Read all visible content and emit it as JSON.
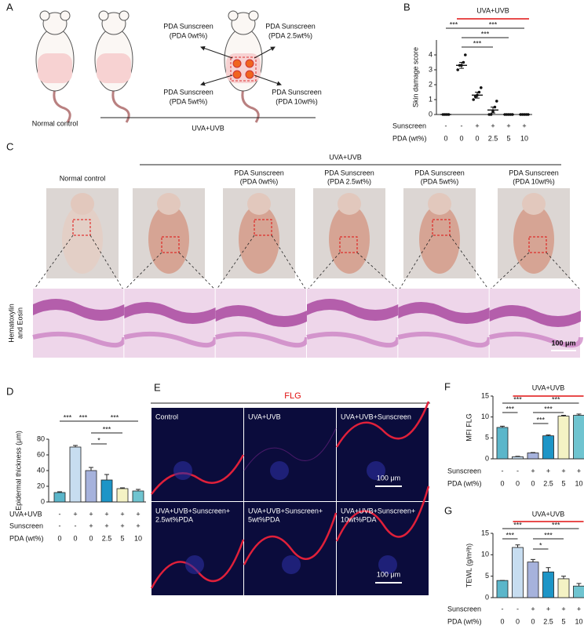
{
  "figure": {
    "a": {
      "label": "A",
      "normal": "Normal control",
      "group": "UVA+UVB",
      "sites": [
        [
          "PDA Sunscreen",
          "(PDA 0wt%)"
        ],
        [
          "PDA Sunscreen",
          "(PDA 2.5wt%)"
        ],
        [
          "PDA Sunscreen",
          "(PDA 5wt%)"
        ],
        [
          "PDA Sunscreen",
          "(PDA 10wt%)"
        ]
      ]
    },
    "c": {
      "label": "C",
      "group": "UVA+UVB",
      "normal": "Normal control",
      "treated": [
        [
          "PDA Sunscreen",
          "(PDA 0wt%)"
        ],
        [
          "PDA Sunscreen",
          "(PDA 2.5wt%)"
        ],
        [
          "PDA Sunscreen",
          "(PDA 5wt%)"
        ],
        [
          "PDA Sunscreen",
          "(PDA 10wt%)"
        ]
      ],
      "stain": [
        "Hematoxylin",
        "and Eosin"
      ],
      "scale_bar": "100 μm"
    },
    "e": {
      "label": "E",
      "title": "FLG",
      "cells": [
        [
          "Control"
        ],
        [
          "UVA+UVB"
        ],
        [
          "UVA+UVB+Sunscreen"
        ],
        [
          "UVA+UVB+Sunscreen+",
          "2.5wt%PDA"
        ],
        [
          "UVA+UVB+Sunscreen+",
          "5wt%PDA"
        ],
        [
          "UVA+UVB+Sunscreen+",
          "10wt%PDA"
        ]
      ],
      "scale_bar": "100 μm"
    }
  },
  "chart_data": [
    {
      "type": "dot",
      "panel": "B",
      "ylabel": "Skin damage score",
      "ylim": [
        0,
        5
      ],
      "yticks": [
        0,
        1,
        2,
        3,
        4
      ],
      "header": "UVA+UVB",
      "header_span": [
        1,
        5
      ],
      "color": "#111111",
      "points": [
        [
          0,
          0,
          0,
          0
        ],
        [
          3.0,
          3.3,
          3.3,
          3.5,
          4.0
        ],
        [
          1.0,
          1.2,
          1.3,
          1.5,
          1.8
        ],
        [
          0,
          0,
          0.2,
          0.5,
          0.9
        ],
        [
          0,
          0,
          0,
          0,
          0
        ],
        [
          0,
          0,
          0,
          0,
          0
        ]
      ],
      "values": [
        0,
        3.3,
        1.3,
        0.3,
        0,
        0
      ],
      "errors": [
        0,
        0.2,
        0.2,
        0.2,
        0,
        0
      ],
      "rows": [
        {
          "name": "Sunscreen",
          "cells": [
            "-",
            "-",
            "+",
            "+",
            "+",
            "+"
          ]
        },
        {
          "name": "PDA (wt%)",
          "cells": [
            "0",
            "0",
            "0",
            "2.5",
            "5",
            "10"
          ]
        }
      ],
      "brackets": [
        {
          "between": [
            0,
            1
          ],
          "label": "***"
        },
        {
          "between": [
            1,
            5
          ],
          "label": "***"
        },
        {
          "between": [
            1,
            4
          ],
          "label": "***"
        },
        {
          "between": [
            1,
            3
          ],
          "label": "***"
        }
      ]
    },
    {
      "type": "bar",
      "panel": "D",
      "ylabel": "Epidermal thickness (μm)",
      "ylim": [
        0,
        80
      ],
      "yticks": [
        0,
        20,
        40,
        60,
        80
      ],
      "values": [
        12,
        70,
        40,
        28,
        17,
        14
      ],
      "errors": [
        1,
        2,
        4,
        7,
        1,
        2
      ],
      "colors": [
        "#5bb6ca",
        "#c7ddf0",
        "#a6b2dc",
        "#1d95c7",
        "#f4f2c4",
        "#6fc4d0"
      ],
      "rows": [
        {
          "name": "UVA+UVB",
          "cells": [
            "-",
            "+",
            "+",
            "+",
            "+",
            "+"
          ]
        },
        {
          "name": "Sunscreen",
          "cells": [
            "-",
            "-",
            "+",
            "+",
            "+",
            "+"
          ]
        },
        {
          "name": "PDA (wt%)",
          "cells": [
            "0",
            "0",
            "0",
            "2.5",
            "5",
            "10"
          ]
        }
      ],
      "brackets": [
        {
          "between": [
            0,
            1
          ],
          "label": "***"
        },
        {
          "between": [
            1,
            2
          ],
          "label": "***"
        },
        {
          "between": [
            2,
            5
          ],
          "label": "***"
        },
        {
          "between": [
            2,
            4
          ],
          "label": "***"
        },
        {
          "between": [
            2,
            3
          ],
          "label": "*"
        }
      ]
    },
    {
      "type": "bar",
      "panel": "F",
      "ylabel": "MFI  FLG",
      "ylim": [
        0,
        15
      ],
      "yticks": [
        0,
        5,
        10,
        15
      ],
      "header": "UVA+UVB",
      "header_span": [
        1,
        5
      ],
      "values": [
        7.5,
        0.5,
        1.4,
        5.5,
        10.2,
        10.4
      ],
      "errors": [
        0.3,
        0.1,
        0.1,
        0.2,
        0.2,
        0.3
      ],
      "colors": [
        "#5bb6ca",
        "#c7ddf0",
        "#a6b2dc",
        "#1d95c7",
        "#f4f2c4",
        "#6fc4d0"
      ],
      "rows": [
        {
          "name": "Sunscreen",
          "cells": [
            "-",
            "-",
            "+",
            "+",
            "+",
            "+"
          ]
        },
        {
          "name": "PDA (wt%)",
          "cells": [
            "0",
            "0",
            "0",
            "2.5",
            "5",
            "10"
          ]
        }
      ],
      "brackets": [
        {
          "between": [
            0,
            2
          ],
          "label": "***"
        },
        {
          "between": [
            2,
            5
          ],
          "label": "***"
        },
        {
          "between": [
            0,
            1
          ],
          "label": "***"
        },
        {
          "between": [
            2,
            4
          ],
          "label": "***"
        },
        {
          "between": [
            2,
            3
          ],
          "label": "***"
        }
      ]
    },
    {
      "type": "bar",
      "panel": "G",
      "ylabel": "TEWL (g/m²h)",
      "ylim": [
        0,
        15
      ],
      "yticks": [
        0,
        5,
        10,
        15
      ],
      "header": "UVA+UVB",
      "header_span": [
        1,
        5
      ],
      "values": [
        4.0,
        11.7,
        8.3,
        6.0,
        4.4,
        2.7
      ],
      "errors": [
        0,
        0.6,
        0.6,
        1.0,
        0.6,
        0.6
      ],
      "colors": [
        "#5bb6ca",
        "#c7ddf0",
        "#a6b2dc",
        "#1d95c7",
        "#f4f2c4",
        "#6fc4d0"
      ],
      "rows": [
        {
          "name": "Sunscreen",
          "cells": [
            "-",
            "-",
            "+",
            "+",
            "+",
            "+"
          ]
        },
        {
          "name": "PDA (wt%)",
          "cells": [
            "0",
            "0",
            "0",
            "2.5",
            "5",
            "10"
          ]
        }
      ],
      "brackets": [
        {
          "between": [
            0,
            2
          ],
          "label": "***"
        },
        {
          "between": [
            2,
            5
          ],
          "label": "***"
        },
        {
          "between": [
            0,
            1
          ],
          "label": "***"
        },
        {
          "between": [
            2,
            4
          ],
          "label": "***"
        },
        {
          "between": [
            2,
            3
          ],
          "label": "*"
        }
      ]
    }
  ]
}
